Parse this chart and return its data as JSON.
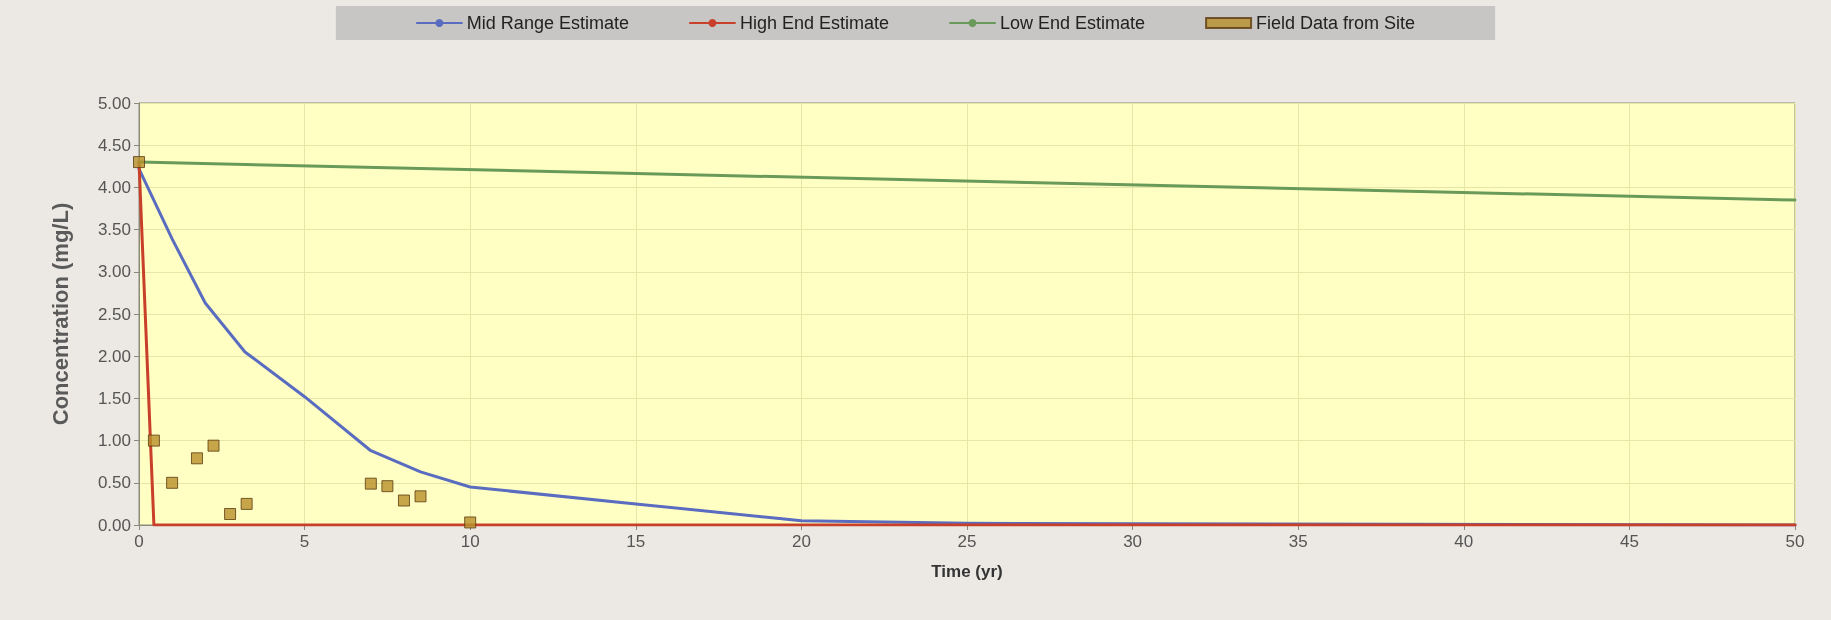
{
  "chart_data": {
    "type": "line",
    "xlabel": "Time (yr)",
    "ylabel": "Concentration (mg/L)",
    "xlim": [
      0,
      50
    ],
    "xticks": [
      0,
      5,
      10,
      15,
      20,
      25,
      30,
      35,
      40,
      45,
      50
    ],
    "ylim": [
      0,
      5
    ],
    "yticks": [
      {
        "value": 0,
        "label": "0.00"
      },
      {
        "value": 0.5,
        "label": "0.50"
      },
      {
        "value": 1,
        "label": "1.00"
      },
      {
        "value": 1.5,
        "label": "1.50"
      },
      {
        "value": 2,
        "label": "2.00"
      },
      {
        "value": 2.5,
        "label": "2.50"
      },
      {
        "value": 3,
        "label": "3.00"
      },
      {
        "value": 3.5,
        "label": "3.50"
      },
      {
        "value": 4,
        "label": "4.00"
      },
      {
        "value": 4.5,
        "label": "4.50"
      },
      {
        "value": 5,
        "label": "5.00"
      }
    ],
    "grid": true,
    "legend": "top",
    "marker": "none",
    "line_style": "solid",
    "series": [
      {
        "name": "Mid Range Estimate",
        "color": "#5a6cc0",
        "x": [
          0,
          1,
          2,
          3.2,
          5,
          7,
          8.5,
          10,
          15,
          20,
          25,
          50
        ],
        "values": [
          4.22,
          3.39,
          2.63,
          2.05,
          1.52,
          0.88,
          0.63,
          0.45,
          0.25,
          0.05,
          0.02,
          0
        ]
      },
      {
        "name": "High End Estimate",
        "color": "#c8402a",
        "x": [
          0,
          0.45,
          50
        ],
        "values": [
          4.3,
          0,
          0
        ]
      },
      {
        "name": "Low End Estimate",
        "color": "#6a9a5a",
        "x": [
          0,
          50
        ],
        "values": [
          4.3,
          3.85
        ]
      },
      {
        "name": "Field Data from Site",
        "type": "scatter",
        "marker": "square",
        "color": "#b8902a",
        "x": [
          0,
          0.45,
          1,
          1.75,
          2.25,
          2.75,
          3.25,
          7,
          7.5,
          8,
          8.5,
          10
        ],
        "values": [
          4.3,
          1,
          0.5,
          0.79,
          0.94,
          0.13,
          0.25,
          0.49,
          0.46,
          0.29,
          0.34,
          0.03
        ]
      }
    ]
  }
}
